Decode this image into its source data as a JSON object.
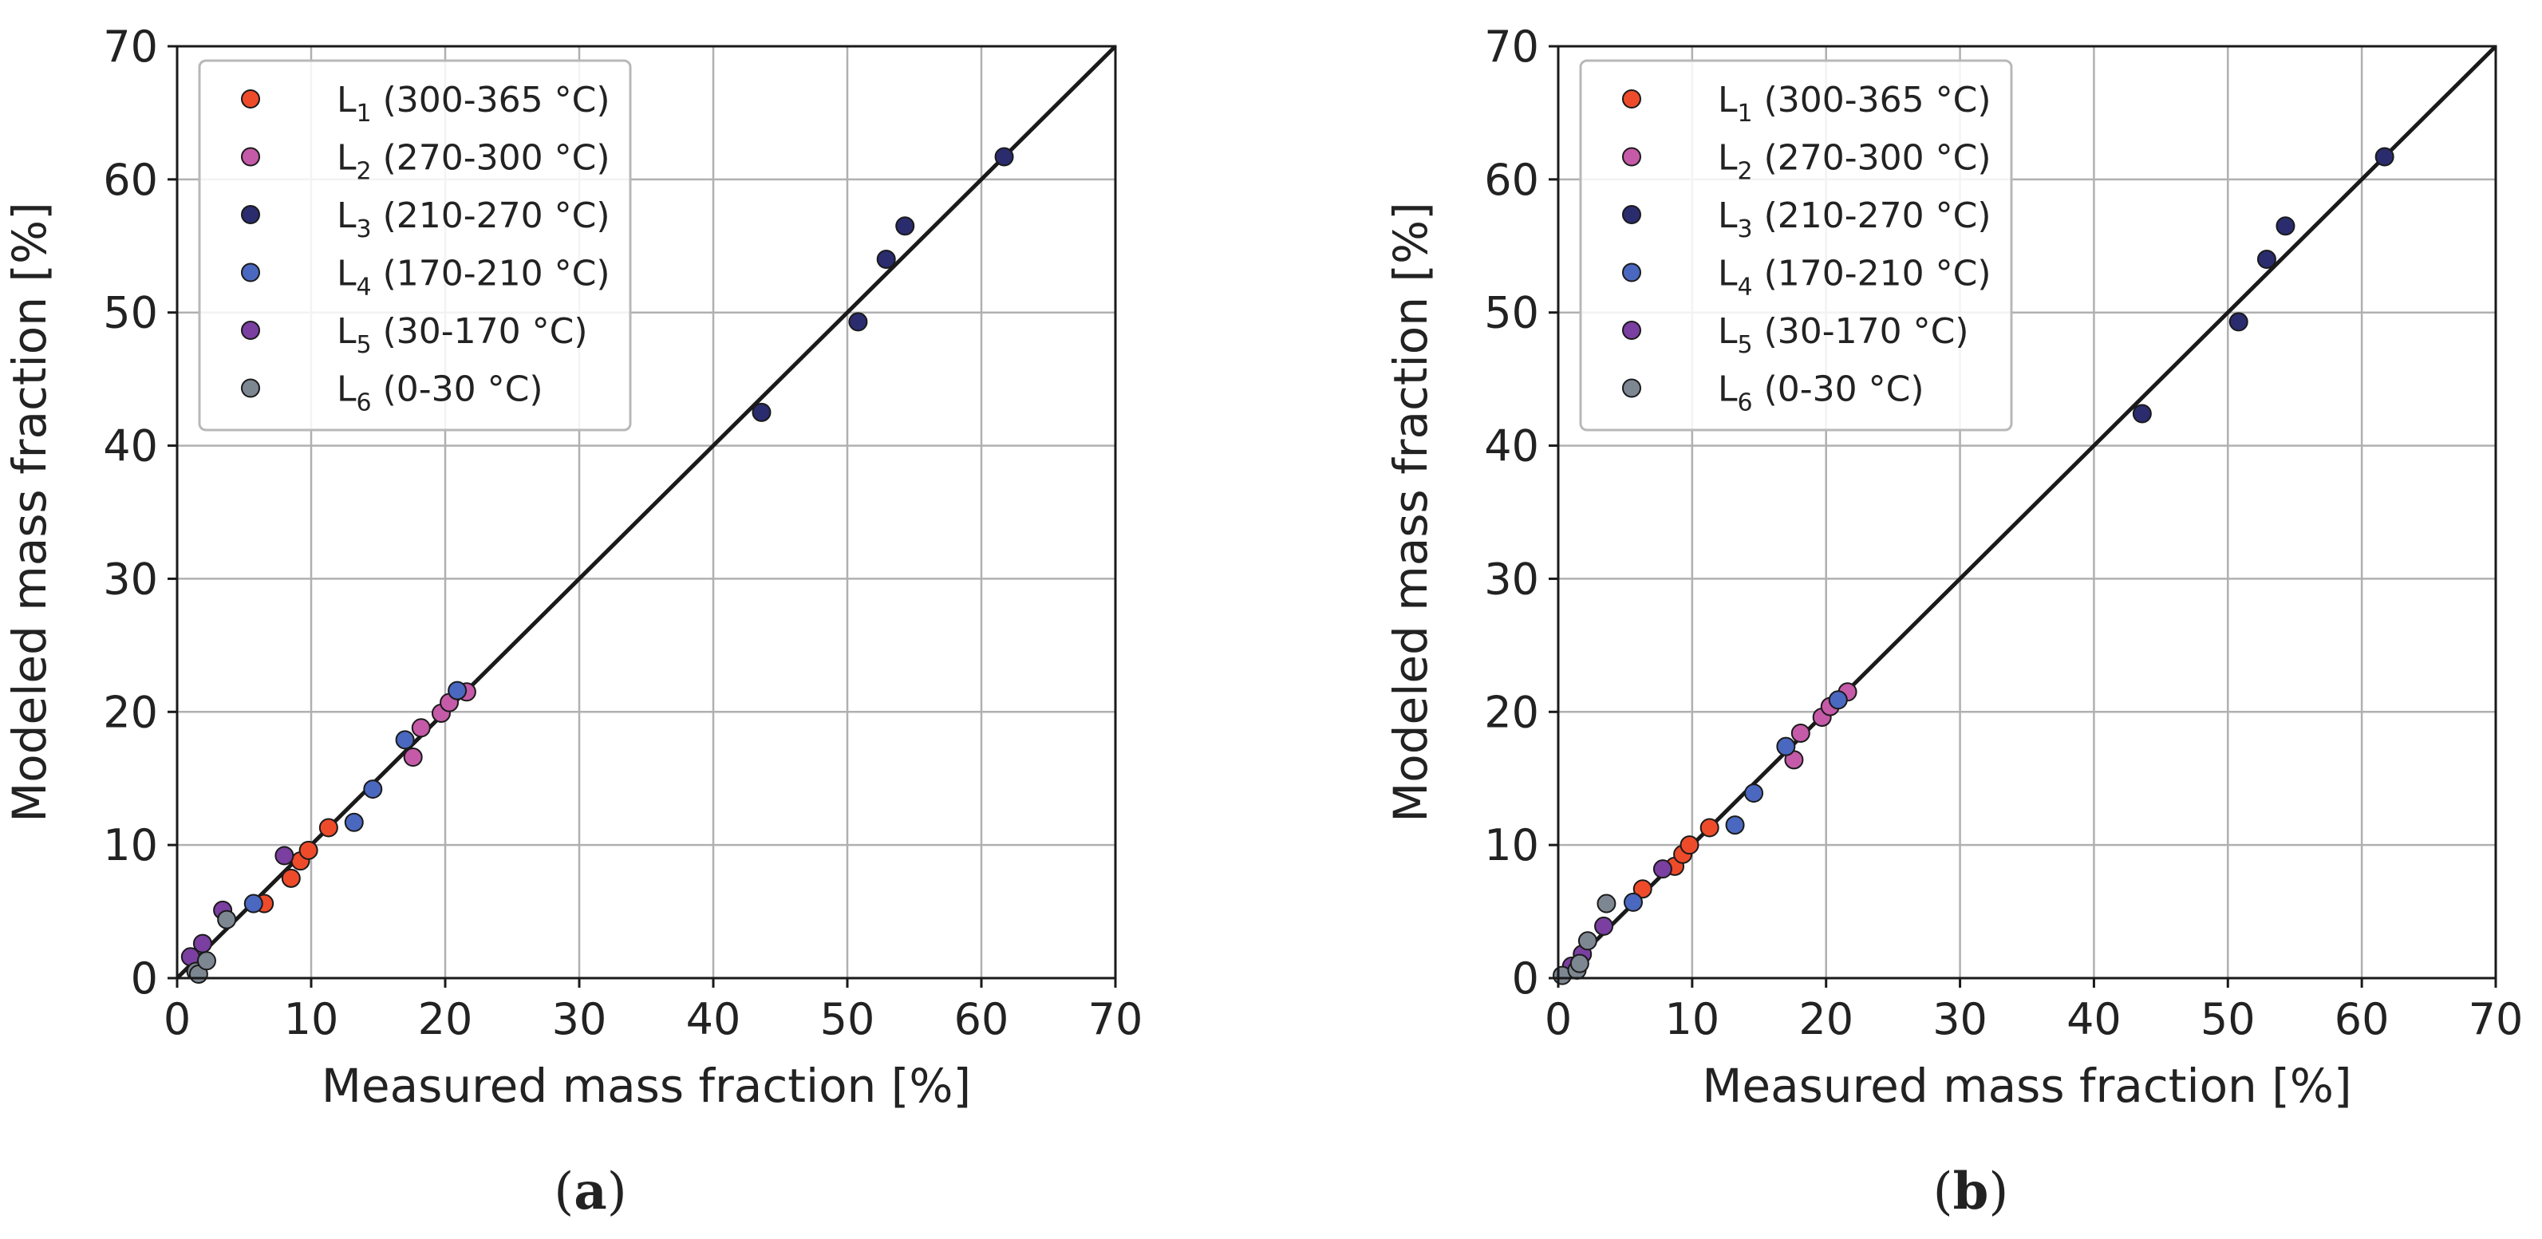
{
  "chart_data": [
    {
      "type": "scatter",
      "panel": "a",
      "caption_open": "(",
      "caption_letter": "a",
      "caption_close": ")",
      "xlabel": "Measured mass fraction [%]",
      "ylabel": "Modeled mass fraction [%]",
      "xlim": [
        0,
        70
      ],
      "ylim": [
        0,
        70
      ],
      "xticks": [
        "0",
        "10",
        "20",
        "30",
        "40",
        "50",
        "60",
        "70"
      ],
      "yticks": [
        "0",
        "10",
        "20",
        "30",
        "40",
        "50",
        "60",
        "70"
      ],
      "grid": true,
      "legend_position": "top-left",
      "reference_line": [
        [
          0,
          0
        ],
        [
          70,
          70
        ]
      ],
      "series": [
        {
          "name": "L1 (300-365 °C)",
          "label_main": "L",
          "label_sub": "1",
          "label_rest": " (300-365 °C)",
          "color": "#ee4b2b",
          "points": [
            [
              6.5,
              5.6
            ],
            [
              8.5,
              7.5
            ],
            [
              9.2,
              8.8
            ],
            [
              9.8,
              9.6
            ],
            [
              11.3,
              11.3
            ]
          ]
        },
        {
          "name": "L2 (270-300 °C)",
          "label_main": "L",
          "label_sub": "2",
          "label_rest": " (270-300 °C)",
          "color": "#c55aa8",
          "points": [
            [
              17.6,
              16.6
            ],
            [
              18.2,
              18.8
            ],
            [
              19.7,
              19.9
            ],
            [
              20.3,
              20.7
            ],
            [
              21.6,
              21.5
            ]
          ]
        },
        {
          "name": "L3 (210-270 °C)",
          "label_main": "L",
          "label_sub": "3",
          "label_rest": " (210-270 °C)",
          "color": "#2a2c6e",
          "points": [
            [
              43.6,
              42.5
            ],
            [
              50.8,
              49.3
            ],
            [
              52.9,
              54.0
            ],
            [
              54.3,
              56.5
            ],
            [
              61.7,
              61.7
            ]
          ]
        },
        {
          "name": "L4 (170-210 °C)",
          "label_main": "L",
          "label_sub": "4",
          "label_rest": " (170-210 °C)",
          "color": "#4a68bf",
          "points": [
            [
              5.7,
              5.6
            ],
            [
              13.2,
              11.7
            ],
            [
              14.6,
              14.2
            ],
            [
              17.0,
              17.9
            ],
            [
              20.9,
              21.6
            ]
          ]
        },
        {
          "name": "L5 (30-170 °C)",
          "label_main": "L",
          "label_sub": "5",
          "label_rest": " (30-170 °C)",
          "color": "#7a3fa0",
          "points": [
            [
              1.0,
              1.6
            ],
            [
              1.9,
              2.6
            ],
            [
              3.4,
              5.1
            ],
            [
              8.0,
              9.2
            ]
          ]
        },
        {
          "name": "L6 (0-30 °C)",
          "label_main": "L",
          "label_sub": "6",
          "label_rest": " (0-30 °C)",
          "color": "#7d8791",
          "points": [
            [
              1.4,
              0.5
            ],
            [
              1.6,
              0.3
            ],
            [
              2.2,
              1.3
            ],
            [
              3.7,
              4.4
            ]
          ]
        }
      ]
    },
    {
      "type": "scatter",
      "panel": "b",
      "caption_open": "(",
      "caption_letter": "b",
      "caption_close": ")",
      "xlabel": "Measured mass fraction [%]",
      "ylabel": "Modeled mass fraction [%]",
      "xlim": [
        0,
        70
      ],
      "ylim": [
        0,
        70
      ],
      "xticks": [
        "0",
        "10",
        "20",
        "30",
        "40",
        "50",
        "60",
        "70"
      ],
      "yticks": [
        "0",
        "10",
        "20",
        "30",
        "40",
        "50",
        "60",
        "70"
      ],
      "grid": true,
      "legend_position": "top-left",
      "reference_line": [
        [
          0,
          0
        ],
        [
          70,
          70
        ]
      ],
      "series": [
        {
          "name": "L1 (300-365 °C)",
          "label_main": "L",
          "label_sub": "1",
          "label_rest": " (300-365 °C)",
          "color": "#ee4b2b",
          "points": [
            [
              6.3,
              6.7
            ],
            [
              8.7,
              8.4
            ],
            [
              9.3,
              9.3
            ],
            [
              9.8,
              10.0
            ],
            [
              11.3,
              11.3
            ]
          ]
        },
        {
          "name": "L2 (270-300 °C)",
          "label_main": "L",
          "label_sub": "2",
          "label_rest": " (270-300 °C)",
          "color": "#c55aa8",
          "points": [
            [
              17.6,
              16.4
            ],
            [
              18.1,
              18.4
            ],
            [
              19.7,
              19.6
            ],
            [
              20.3,
              20.4
            ],
            [
              21.6,
              21.5
            ]
          ]
        },
        {
          "name": "L3 (210-270 °C)",
          "label_main": "L",
          "label_sub": "3",
          "label_rest": " (210-270 °C)",
          "color": "#2a2c6e",
          "points": [
            [
              43.6,
              42.4
            ],
            [
              50.8,
              49.3
            ],
            [
              52.9,
              54.0
            ],
            [
              54.3,
              56.5
            ],
            [
              61.7,
              61.7
            ]
          ]
        },
        {
          "name": "L4 (170-210 °C)",
          "label_main": "L",
          "label_sub": "4",
          "label_rest": " (170-210 °C)",
          "color": "#4a68bf",
          "points": [
            [
              5.6,
              5.7
            ],
            [
              13.2,
              11.5
            ],
            [
              14.6,
              13.9
            ],
            [
              17.0,
              17.4
            ],
            [
              20.9,
              20.9
            ]
          ]
        },
        {
          "name": "L5 (30-170 °C)",
          "label_main": "L",
          "label_sub": "5",
          "label_rest": " (30-170 °C)",
          "color": "#7a3fa0",
          "points": [
            [
              1.0,
              0.9
            ],
            [
              1.8,
              1.8
            ],
            [
              3.4,
              3.9
            ],
            [
              7.8,
              8.2
            ]
          ]
        },
        {
          "name": "L6 (0-30 °C)",
          "label_main": "L",
          "label_sub": "6",
          "label_rest": " (0-30 °C)",
          "color": "#7d8791",
          "points": [
            [
              0.3,
              0.2
            ],
            [
              1.4,
              0.6
            ],
            [
              1.6,
              1.1
            ],
            [
              2.2,
              2.8
            ],
            [
              3.6,
              5.6
            ]
          ]
        }
      ]
    }
  ]
}
